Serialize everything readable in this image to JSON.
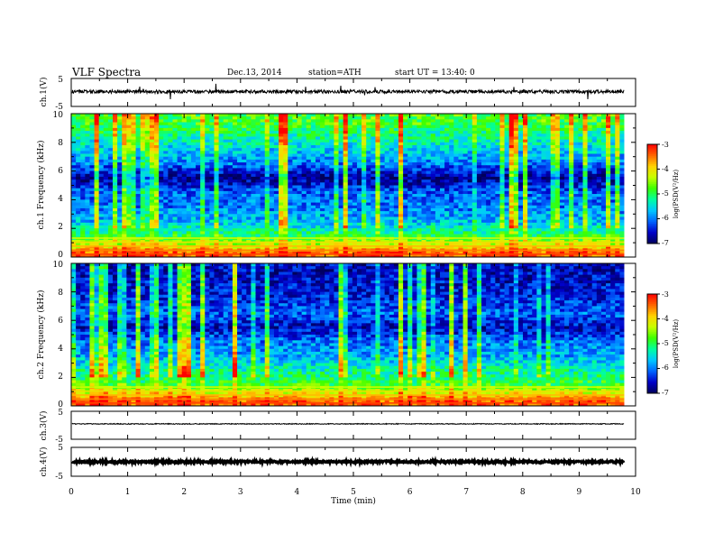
{
  "header": {
    "title": "VLF  Spectra",
    "date": "Dec.13, 2014",
    "station": "station=ATH",
    "start": "start  UT  =   13:40: 0"
  },
  "chart_data": [
    {
      "type": "line",
      "id": "ch1-waveform",
      "ylabel": "ch.1(V)",
      "ylim": [
        -5,
        5
      ],
      "ytick_labels": [
        "5",
        "-5"
      ],
      "xlim": [
        0,
        10
      ],
      "x_end": 9.8,
      "baseline": 0.3,
      "noise_amplitude": 0.6,
      "color": "#000000"
    },
    {
      "type": "heatmap",
      "id": "ch1-spectrogram",
      "ylabel": "ch.1\nFrequency  (kHz)",
      "ylim": [
        0,
        10
      ],
      "ytick_labels": [
        "0",
        "2",
        "4",
        "6",
        "8",
        "10"
      ],
      "xlim": [
        0,
        10
      ],
      "x_end": 9.8,
      "colorbar": {
        "label": "log(PSD(V²/Hz)",
        "range": [
          -7,
          -3
        ],
        "tick_labels": [
          "-3",
          "-4",
          "-5",
          "-6",
          "-7"
        ]
      },
      "band_profile_khz": [
        {
          "f": 0.3,
          "logpsd": -3.4
        },
        {
          "f": 0.8,
          "logpsd": -4.2
        },
        {
          "f": 1.5,
          "logpsd": -5.0
        },
        {
          "f": 2.5,
          "logpsd": -5.7
        },
        {
          "f": 3.5,
          "logpsd": -6.0
        },
        {
          "f": 4.5,
          "logpsd": -6.1
        },
        {
          "f": 5.5,
          "logpsd": -6.8
        },
        {
          "f": 6.5,
          "logpsd": -6.0
        },
        {
          "f": 7.5,
          "logpsd": -5.6
        },
        {
          "f": 8.5,
          "logpsd": -5.2
        },
        {
          "f": 9.5,
          "logpsd": -4.8
        }
      ]
    },
    {
      "type": "heatmap",
      "id": "ch2-spectrogram",
      "ylabel": "ch.2\nFrequency  (kHz)",
      "ylim": [
        0,
        10
      ],
      "ytick_labels": [
        "0",
        "2",
        "4",
        "6",
        "8",
        "10"
      ],
      "xlim": [
        0,
        10
      ],
      "x_end": 9.8,
      "colorbar": {
        "label": "log(PSD(V²/Hz)",
        "range": [
          -7,
          -3
        ],
        "tick_labels": [
          "-3",
          "-4",
          "-5",
          "-6",
          "-7"
        ]
      },
      "band_profile_khz": [
        {
          "f": 0.3,
          "logpsd": -3.4
        },
        {
          "f": 0.8,
          "logpsd": -4.0
        },
        {
          "f": 1.5,
          "logpsd": -4.9
        },
        {
          "f": 2.5,
          "logpsd": -5.3
        },
        {
          "f": 3.5,
          "logpsd": -5.8
        },
        {
          "f": 4.5,
          "logpsd": -6.0
        },
        {
          "f": 5.5,
          "logpsd": -6.6
        },
        {
          "f": 6.5,
          "logpsd": -6.1
        },
        {
          "f": 7.5,
          "logpsd": -6.4
        },
        {
          "f": 8.5,
          "logpsd": -6.5
        },
        {
          "f": 9.5,
          "logpsd": -6.6
        }
      ]
    },
    {
      "type": "line",
      "id": "ch3-waveform",
      "ylabel": "ch.3(V)",
      "ylim": [
        -5,
        5
      ],
      "ytick_labels": [
        "5",
        "-5"
      ],
      "xlim": [
        0,
        10
      ],
      "x_end": 9.8,
      "baseline": 0.5,
      "noise_amplitude": 0.15,
      "color": "#000000"
    },
    {
      "type": "line",
      "id": "ch4-waveform",
      "ylabel": "ch.4(V)",
      "ylim": [
        -5,
        5
      ],
      "ytick_labels": [
        "5",
        "-5"
      ],
      "xlim": [
        0,
        10
      ],
      "x_end": 9.8,
      "baseline": 0.0,
      "noise_amplitude": 0.35,
      "color": "#000000"
    }
  ],
  "x_axis": {
    "label": "Time  (min)",
    "tick_labels": [
      "0",
      "1",
      "2",
      "3",
      "4",
      "5",
      "6",
      "7",
      "8",
      "9",
      "10"
    ],
    "range": [
      0,
      10
    ]
  },
  "colors": {
    "colormap": [
      "#00005a",
      "#0000c8",
      "#0064ff",
      "#00c8ff",
      "#00ffa0",
      "#3cff00",
      "#c8ff00",
      "#ffd200",
      "#ff6400",
      "#ff0000",
      "#ffffff"
    ]
  }
}
